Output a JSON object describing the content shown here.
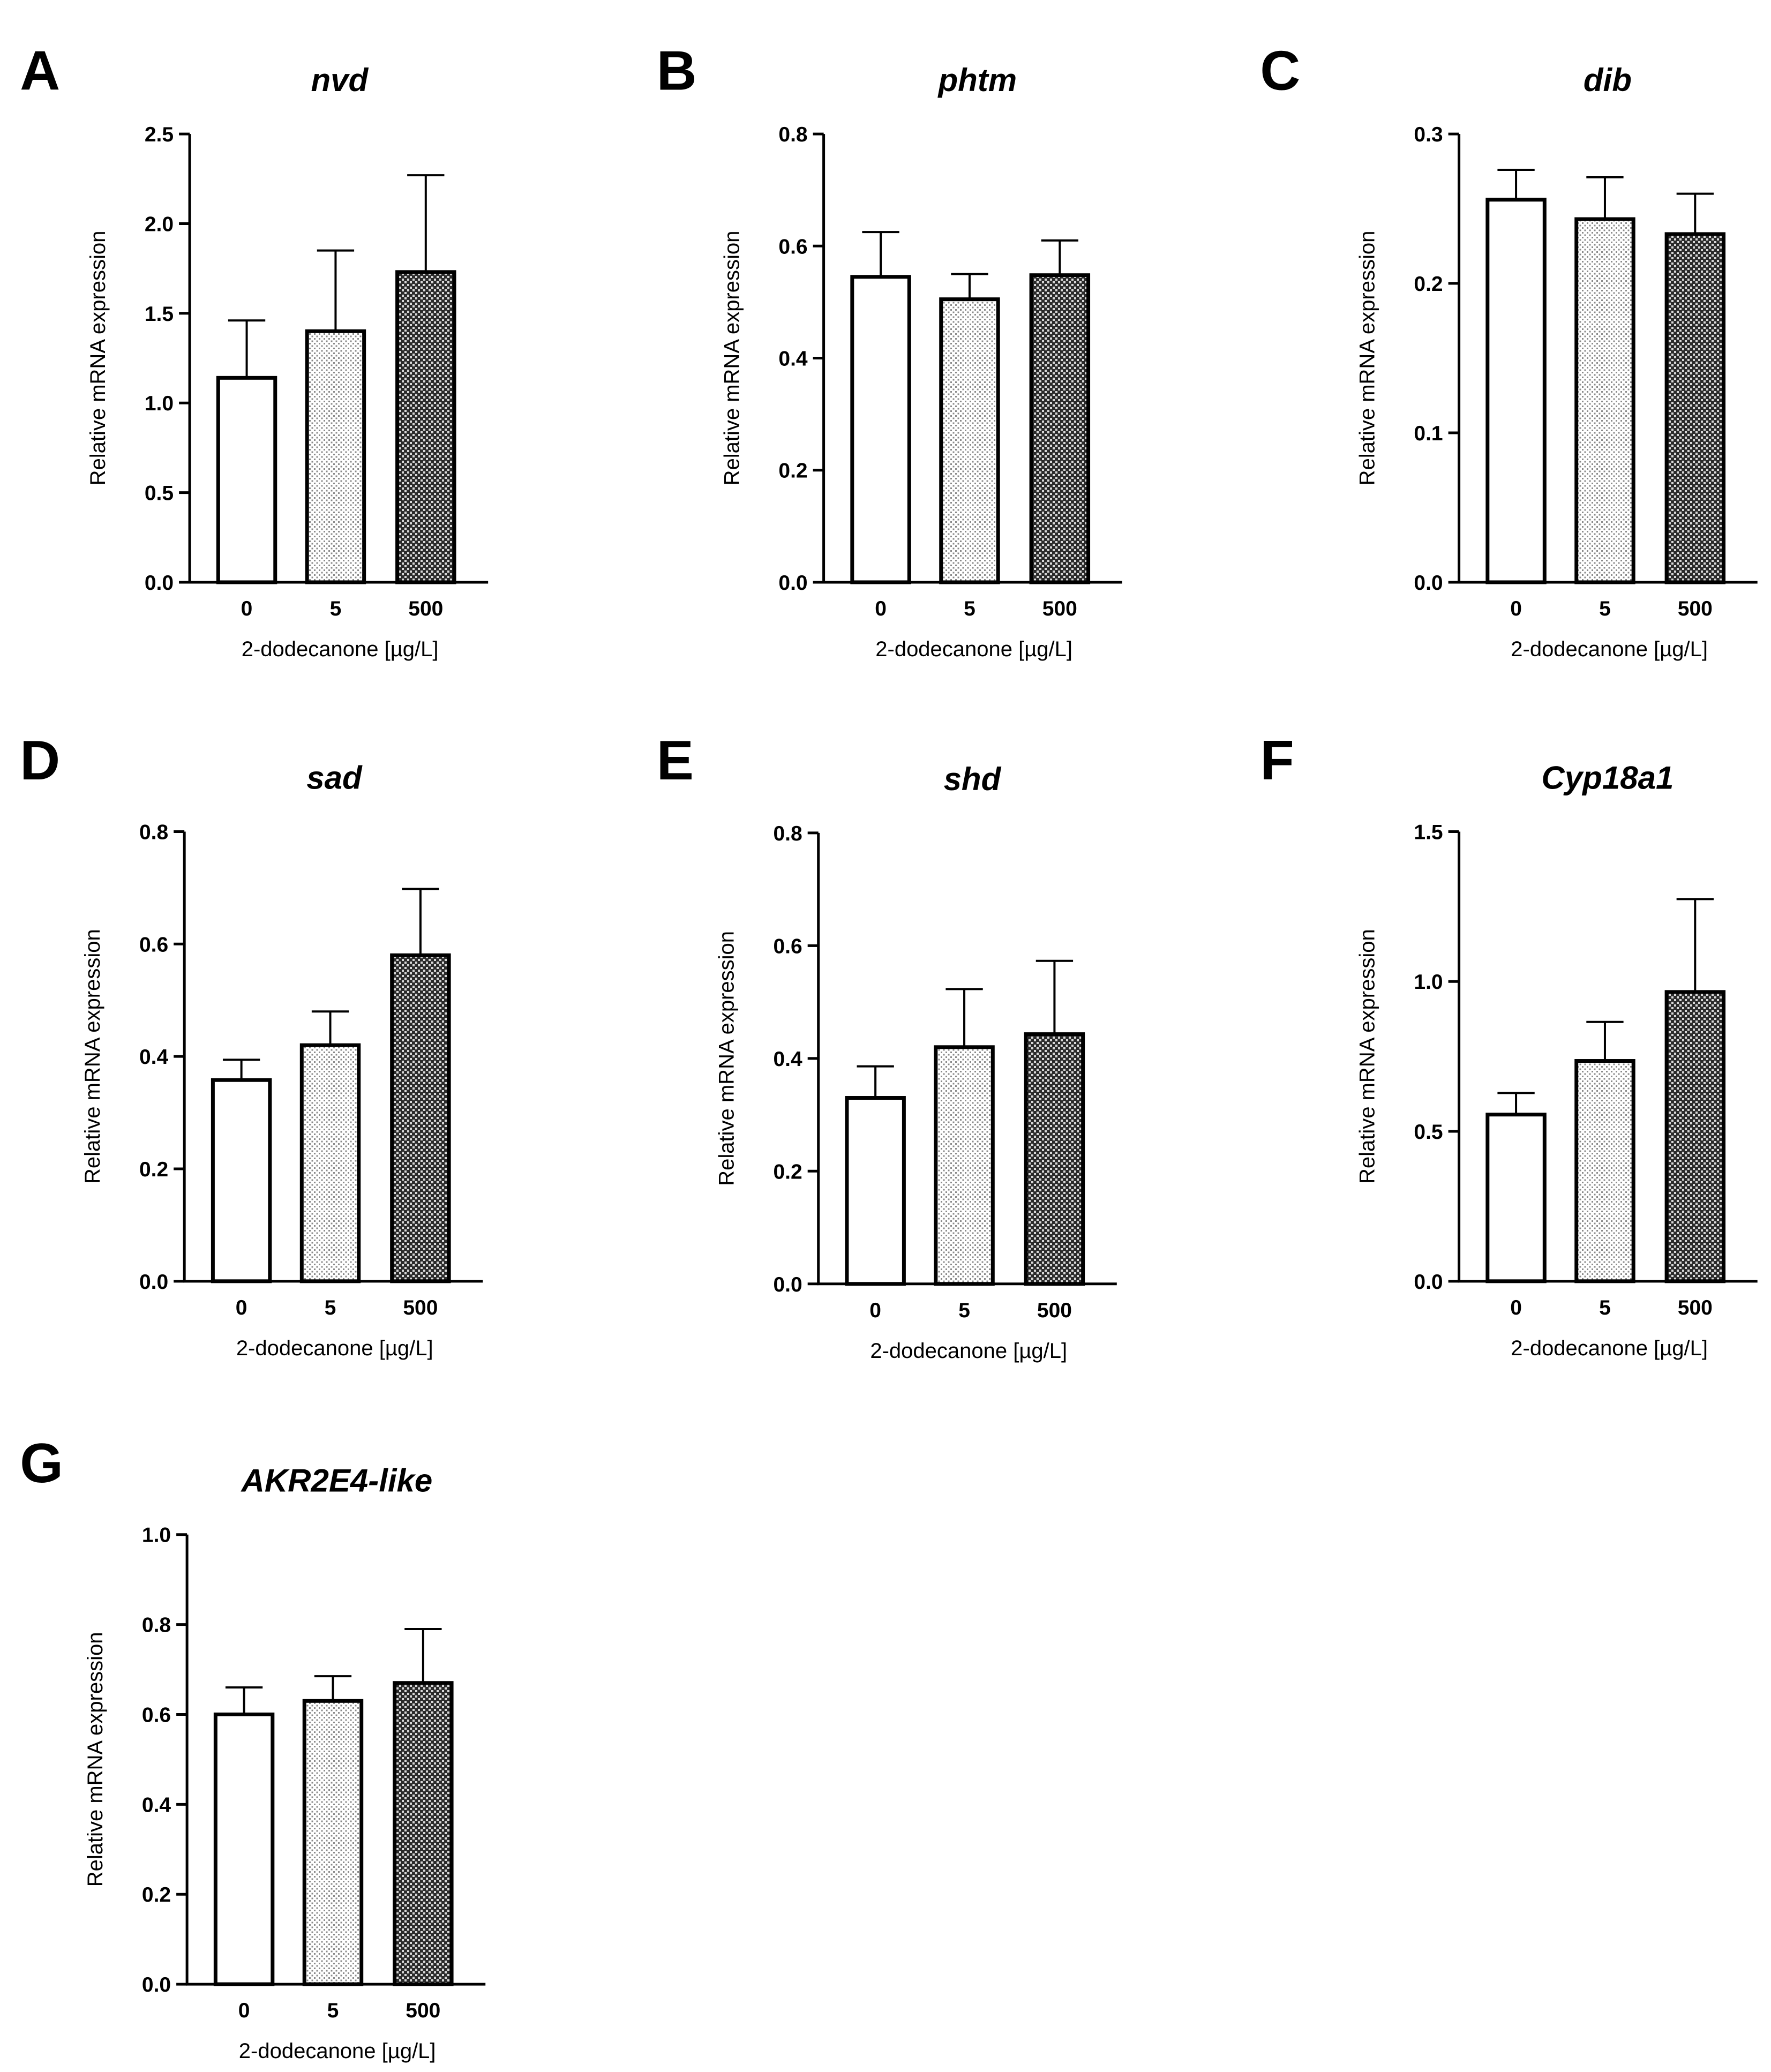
{
  "chart_data": [
    {
      "panel": "A",
      "type": "bar",
      "title": "nvd",
      "ylabel": "Relative mRNA expression",
      "xlabel": "2-dodecanone [µg/L]",
      "categories": [
        "0",
        "5",
        "500"
      ],
      "values": [
        1.14,
        1.4,
        1.73
      ],
      "errors": [
        0.32,
        0.45,
        0.54
      ],
      "ylim": [
        0,
        2.5
      ],
      "yticks": [
        "0.0",
        "0.5",
        "1.0",
        "1.5",
        "2.0",
        "2.5"
      ],
      "fills": [
        "white",
        "light-dots",
        "dark-check"
      ]
    },
    {
      "panel": "B",
      "type": "bar",
      "title": "phtm",
      "ylabel": "Relative mRNA expression",
      "xlabel": "2-dodecanone [µg/L]",
      "categories": [
        "0",
        "5",
        "500"
      ],
      "values": [
        0.545,
        0.505,
        0.548
      ],
      "errors": [
        0.08,
        0.045,
        0.062
      ],
      "ylim": [
        0,
        0.8
      ],
      "yticks": [
        "0.0",
        "0.2",
        "0.4",
        "0.6",
        "0.8"
      ],
      "fills": [
        "white",
        "light-dots",
        "dark-check"
      ]
    },
    {
      "panel": "C",
      "type": "bar",
      "title": "dib",
      "ylabel": "Relative mRNA expression",
      "xlabel": "2-dodecanone [µg/L]",
      "categories": [
        "0",
        "5",
        "500"
      ],
      "values": [
        0.256,
        0.243,
        0.233
      ],
      "errors": [
        0.02,
        0.028,
        0.027
      ],
      "ylim": [
        0,
        0.3
      ],
      "yticks": [
        "0.0",
        "0.1",
        "0.2",
        "0.3"
      ],
      "fills": [
        "white",
        "light-dots",
        "dark-check"
      ]
    },
    {
      "panel": "D",
      "type": "bar",
      "title": "sad",
      "ylabel": "Relative mRNA expression",
      "xlabel": "2-dodecanone [µg/L]",
      "categories": [
        "0",
        "5",
        "500"
      ],
      "values": [
        0.358,
        0.42,
        0.58
      ],
      "errors": [
        0.036,
        0.06,
        0.118
      ],
      "ylim": [
        0,
        0.8
      ],
      "yticks": [
        "0.0",
        "0.2",
        "0.4",
        "0.6",
        "0.8"
      ],
      "fills": [
        "white",
        "light-dots",
        "dark-check"
      ]
    },
    {
      "panel": "E",
      "type": "bar",
      "title": "shd",
      "ylabel": "Relative mRNA expression",
      "xlabel": "2-dodecanone [µg/L]",
      "categories": [
        "0",
        "5",
        "500"
      ],
      "values": [
        0.33,
        0.42,
        0.443
      ],
      "errors": [
        0.056,
        0.103,
        0.13
      ],
      "ylim": [
        0,
        0.8
      ],
      "yticks": [
        "0.0",
        "0.2",
        "0.4",
        "0.6",
        "0.8"
      ],
      "fills": [
        "white",
        "light-dots",
        "dark-check"
      ]
    },
    {
      "panel": "F",
      "type": "bar",
      "title": "Cyp18a1",
      "ylabel": "Relative mRNA expression",
      "xlabel": "2-dodecanone [µg/L]",
      "categories": [
        "0",
        "5",
        "500"
      ],
      "values": [
        0.556,
        0.735,
        0.965
      ],
      "errors": [
        0.072,
        0.13,
        0.31
      ],
      "ylim": [
        0,
        1.5
      ],
      "yticks": [
        "0.0",
        "0.5",
        "1.0",
        "1.5"
      ],
      "fills": [
        "white",
        "light-dots",
        "dark-check"
      ]
    },
    {
      "panel": "G",
      "type": "bar",
      "title": "AKR2E4-like",
      "ylabel": "Relative mRNA expression",
      "xlabel": "2-dodecanone [µg/L]",
      "categories": [
        "0",
        "5",
        "500"
      ],
      "values": [
        0.6,
        0.63,
        0.67
      ],
      "errors": [
        0.06,
        0.055,
        0.12
      ],
      "ylim": [
        0,
        1.0
      ],
      "yticks": [
        "0.0",
        "0.2",
        "0.4",
        "0.6",
        "0.8",
        "1.0"
      ],
      "fills": [
        "white",
        "light-dots",
        "dark-check"
      ]
    }
  ]
}
